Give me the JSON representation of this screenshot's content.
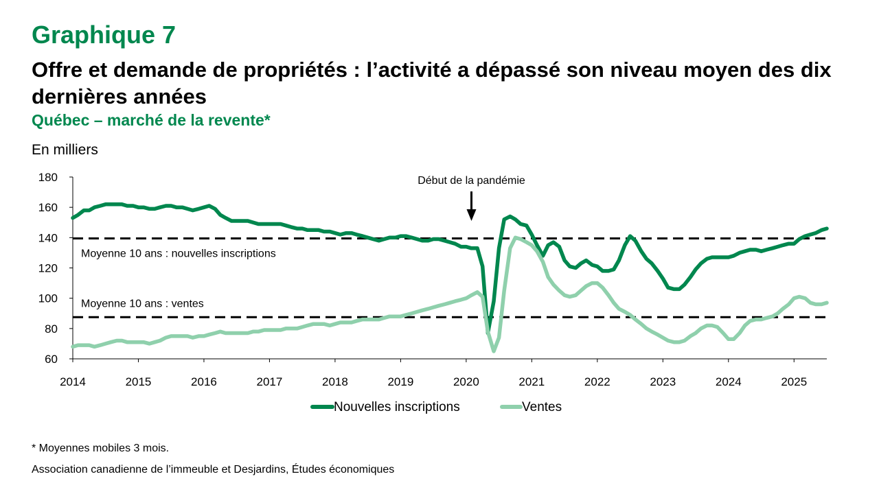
{
  "header": {
    "graph_number": "Graphique 7",
    "title": "Offre et demande de propriétés : l’activité a dépassé son niveau moyen des dix dernières années",
    "subtitle": "Québec – marché de la revente*",
    "unit_label": "En milliers"
  },
  "footer": {
    "note": "* Moyennes mobiles 3 mois.",
    "source": "Association canadienne de l’immeuble et Desjardins, Études économiques"
  },
  "colors": {
    "inscriptions": "#00874e",
    "ventes": "#8fd0ac",
    "title_green": "#00874e"
  },
  "chart_data": {
    "type": "line",
    "ylim": [
      60,
      180
    ],
    "yticks": [
      60,
      80,
      100,
      120,
      140,
      160,
      180
    ],
    "xlim": [
      2014,
      2025.5
    ],
    "xticks": [
      "2014",
      "2015",
      "2016",
      "2017",
      "2018",
      "2019",
      "2020",
      "2021",
      "2022",
      "2023",
      "2024",
      "2025"
    ],
    "legend_position": "bottom",
    "grid": false,
    "annotations": {
      "pandemic_label": "Début de la pandémie",
      "pandemic_x": 2020.08,
      "ref_lines": [
        {
          "label": "Moyenne 10 ans : nouvelles inscriptions",
          "value": 139.5
        },
        {
          "label": "Moyenne 10 ans : ventes",
          "value": 87.5
        }
      ]
    },
    "series": [
      {
        "name": "Nouvelles inscriptions",
        "points": [
          [
            2014.0,
            153
          ],
          [
            2014.08,
            155
          ],
          [
            2014.17,
            158
          ],
          [
            2014.25,
            158
          ],
          [
            2014.33,
            160
          ],
          [
            2014.42,
            161
          ],
          [
            2014.5,
            162
          ],
          [
            2014.58,
            162
          ],
          [
            2014.67,
            162
          ],
          [
            2014.75,
            162
          ],
          [
            2014.83,
            161
          ],
          [
            2014.92,
            161
          ],
          [
            2015.0,
            160
          ],
          [
            2015.08,
            160
          ],
          [
            2015.17,
            159
          ],
          [
            2015.25,
            159
          ],
          [
            2015.33,
            160
          ],
          [
            2015.42,
            161
          ],
          [
            2015.5,
            161
          ],
          [
            2015.58,
            160
          ],
          [
            2015.67,
            160
          ],
          [
            2015.75,
            159
          ],
          [
            2015.83,
            158
          ],
          [
            2015.92,
            159
          ],
          [
            2016.0,
            160
          ],
          [
            2016.08,
            161
          ],
          [
            2016.17,
            159
          ],
          [
            2016.25,
            155
          ],
          [
            2016.33,
            153
          ],
          [
            2016.42,
            151
          ],
          [
            2016.5,
            151
          ],
          [
            2016.58,
            151
          ],
          [
            2016.67,
            151
          ],
          [
            2016.75,
            150
          ],
          [
            2016.83,
            149
          ],
          [
            2016.92,
            149
          ],
          [
            2017.0,
            149
          ],
          [
            2017.08,
            149
          ],
          [
            2017.17,
            149
          ],
          [
            2017.25,
            148
          ],
          [
            2017.33,
            147
          ],
          [
            2017.42,
            146
          ],
          [
            2017.5,
            146
          ],
          [
            2017.58,
            145
          ],
          [
            2017.67,
            145
          ],
          [
            2017.75,
            145
          ],
          [
            2017.83,
            144
          ],
          [
            2017.92,
            144
          ],
          [
            2018.0,
            143
          ],
          [
            2018.08,
            142
          ],
          [
            2018.17,
            143
          ],
          [
            2018.25,
            143
          ],
          [
            2018.33,
            142
          ],
          [
            2018.42,
            141
          ],
          [
            2018.5,
            140
          ],
          [
            2018.58,
            139
          ],
          [
            2018.67,
            138
          ],
          [
            2018.75,
            139
          ],
          [
            2018.83,
            140
          ],
          [
            2018.92,
            140
          ],
          [
            2019.0,
            141
          ],
          [
            2019.08,
            141
          ],
          [
            2019.17,
            140
          ],
          [
            2019.25,
            139
          ],
          [
            2019.33,
            138
          ],
          [
            2019.42,
            138
          ],
          [
            2019.5,
            139
          ],
          [
            2019.58,
            139
          ],
          [
            2019.67,
            138
          ],
          [
            2019.75,
            137
          ],
          [
            2019.83,
            136
          ],
          [
            2019.92,
            134
          ],
          [
            2020.0,
            134
          ],
          [
            2020.08,
            133
          ],
          [
            2020.17,
            133
          ],
          [
            2020.25,
            121
          ],
          [
            2020.33,
            77
          ],
          [
            2020.42,
            98
          ],
          [
            2020.5,
            133
          ],
          [
            2020.58,
            152
          ],
          [
            2020.67,
            154
          ],
          [
            2020.75,
            152
          ],
          [
            2020.83,
            149
          ],
          [
            2020.92,
            148
          ],
          [
            2021.0,
            142
          ],
          [
            2021.08,
            135
          ],
          [
            2021.17,
            128
          ],
          [
            2021.25,
            135
          ],
          [
            2021.33,
            137
          ],
          [
            2021.42,
            134
          ],
          [
            2021.5,
            125
          ],
          [
            2021.58,
            121
          ],
          [
            2021.67,
            120
          ],
          [
            2021.75,
            123
          ],
          [
            2021.83,
            125
          ],
          [
            2021.92,
            122
          ],
          [
            2022.0,
            121
          ],
          [
            2022.08,
            118
          ],
          [
            2022.17,
            118
          ],
          [
            2022.25,
            119
          ],
          [
            2022.33,
            125
          ],
          [
            2022.42,
            135
          ],
          [
            2022.5,
            141
          ],
          [
            2022.58,
            138
          ],
          [
            2022.67,
            131
          ],
          [
            2022.75,
            126
          ],
          [
            2022.83,
            123
          ],
          [
            2022.92,
            118
          ],
          [
            2023.0,
            113
          ],
          [
            2023.08,
            107
          ],
          [
            2023.17,
            106
          ],
          [
            2023.25,
            106
          ],
          [
            2023.33,
            109
          ],
          [
            2023.42,
            114
          ],
          [
            2023.5,
            119
          ],
          [
            2023.58,
            123
          ],
          [
            2023.67,
            126
          ],
          [
            2023.75,
            127
          ],
          [
            2023.83,
            127
          ],
          [
            2023.92,
            127
          ],
          [
            2024.0,
            127
          ],
          [
            2024.08,
            128
          ],
          [
            2024.17,
            130
          ],
          [
            2024.25,
            131
          ],
          [
            2024.33,
            132
          ],
          [
            2024.42,
            132
          ],
          [
            2024.5,
            131
          ],
          [
            2024.58,
            132
          ],
          [
            2024.67,
            133
          ],
          [
            2024.75,
            134
          ],
          [
            2024.83,
            135
          ],
          [
            2024.92,
            136
          ],
          [
            2025.0,
            136
          ],
          [
            2025.08,
            139
          ],
          [
            2025.17,
            141
          ],
          [
            2025.25,
            142
          ],
          [
            2025.33,
            143
          ],
          [
            2025.42,
            145
          ],
          [
            2025.5,
            146
          ]
        ]
      },
      {
        "name": "Ventes",
        "points": [
          [
            2014.0,
            68
          ],
          [
            2014.08,
            69
          ],
          [
            2014.17,
            69
          ],
          [
            2014.25,
            69
          ],
          [
            2014.33,
            68
          ],
          [
            2014.42,
            69
          ],
          [
            2014.5,
            70
          ],
          [
            2014.58,
            71
          ],
          [
            2014.67,
            72
          ],
          [
            2014.75,
            72
          ],
          [
            2014.83,
            71
          ],
          [
            2014.92,
            71
          ],
          [
            2015.0,
            71
          ],
          [
            2015.08,
            71
          ],
          [
            2015.17,
            70
          ],
          [
            2015.25,
            71
          ],
          [
            2015.33,
            72
          ],
          [
            2015.42,
            74
          ],
          [
            2015.5,
            75
          ],
          [
            2015.58,
            75
          ],
          [
            2015.67,
            75
          ],
          [
            2015.75,
            75
          ],
          [
            2015.83,
            74
          ],
          [
            2015.92,
            75
          ],
          [
            2016.0,
            75
          ],
          [
            2016.08,
            76
          ],
          [
            2016.17,
            77
          ],
          [
            2016.25,
            78
          ],
          [
            2016.33,
            77
          ],
          [
            2016.42,
            77
          ],
          [
            2016.5,
            77
          ],
          [
            2016.58,
            77
          ],
          [
            2016.67,
            77
          ],
          [
            2016.75,
            78
          ],
          [
            2016.83,
            78
          ],
          [
            2016.92,
            79
          ],
          [
            2017.0,
            79
          ],
          [
            2017.08,
            79
          ],
          [
            2017.17,
            79
          ],
          [
            2017.25,
            80
          ],
          [
            2017.33,
            80
          ],
          [
            2017.42,
            80
          ],
          [
            2017.5,
            81
          ],
          [
            2017.58,
            82
          ],
          [
            2017.67,
            83
          ],
          [
            2017.75,
            83
          ],
          [
            2017.83,
            83
          ],
          [
            2017.92,
            82
          ],
          [
            2018.0,
            83
          ],
          [
            2018.08,
            84
          ],
          [
            2018.17,
            84
          ],
          [
            2018.25,
            84
          ],
          [
            2018.33,
            85
          ],
          [
            2018.42,
            86
          ],
          [
            2018.5,
            86
          ],
          [
            2018.58,
            86
          ],
          [
            2018.67,
            86
          ],
          [
            2018.75,
            87
          ],
          [
            2018.83,
            88
          ],
          [
            2018.92,
            88
          ],
          [
            2019.0,
            88
          ],
          [
            2019.08,
            89
          ],
          [
            2019.17,
            90
          ],
          [
            2019.25,
            91
          ],
          [
            2019.33,
            92
          ],
          [
            2019.42,
            93
          ],
          [
            2019.5,
            94
          ],
          [
            2019.58,
            95
          ],
          [
            2019.67,
            96
          ],
          [
            2019.75,
            97
          ],
          [
            2019.83,
            98
          ],
          [
            2019.92,
            99
          ],
          [
            2020.0,
            100
          ],
          [
            2020.08,
            102
          ],
          [
            2020.17,
            104
          ],
          [
            2020.25,
            101
          ],
          [
            2020.33,
            78
          ],
          [
            2020.42,
            65
          ],
          [
            2020.5,
            74
          ],
          [
            2020.58,
            105
          ],
          [
            2020.67,
            133
          ],
          [
            2020.75,
            140
          ],
          [
            2020.83,
            139
          ],
          [
            2020.92,
            137
          ],
          [
            2021.0,
            135
          ],
          [
            2021.08,
            131
          ],
          [
            2021.17,
            124
          ],
          [
            2021.25,
            114
          ],
          [
            2021.33,
            109
          ],
          [
            2021.42,
            105
          ],
          [
            2021.5,
            102
          ],
          [
            2021.58,
            101
          ],
          [
            2021.67,
            102
          ],
          [
            2021.75,
            105
          ],
          [
            2021.83,
            108
          ],
          [
            2021.92,
            110
          ],
          [
            2022.0,
            110
          ],
          [
            2022.08,
            107
          ],
          [
            2022.17,
            102
          ],
          [
            2022.25,
            97
          ],
          [
            2022.33,
            93
          ],
          [
            2022.42,
            91
          ],
          [
            2022.5,
            89
          ],
          [
            2022.58,
            86
          ],
          [
            2022.67,
            83
          ],
          [
            2022.75,
            80
          ],
          [
            2022.83,
            78
          ],
          [
            2022.92,
            76
          ],
          [
            2023.0,
            74
          ],
          [
            2023.08,
            72
          ],
          [
            2023.17,
            71
          ],
          [
            2023.25,
            71
          ],
          [
            2023.33,
            72
          ],
          [
            2023.42,
            75
          ],
          [
            2023.5,
            77
          ],
          [
            2023.58,
            80
          ],
          [
            2023.67,
            82
          ],
          [
            2023.75,
            82
          ],
          [
            2023.83,
            81
          ],
          [
            2023.92,
            77
          ],
          [
            2024.0,
            73
          ],
          [
            2024.08,
            73
          ],
          [
            2024.17,
            77
          ],
          [
            2024.25,
            82
          ],
          [
            2024.33,
            85
          ],
          [
            2024.42,
            86
          ],
          [
            2024.5,
            86
          ],
          [
            2024.58,
            87
          ],
          [
            2024.67,
            88
          ],
          [
            2024.75,
            90
          ],
          [
            2024.83,
            93
          ],
          [
            2024.92,
            96
          ],
          [
            2025.0,
            100
          ],
          [
            2025.08,
            101
          ],
          [
            2025.17,
            100
          ],
          [
            2025.25,
            97
          ],
          [
            2025.33,
            96
          ],
          [
            2025.42,
            96
          ],
          [
            2025.5,
            97
          ]
        ]
      }
    ]
  }
}
